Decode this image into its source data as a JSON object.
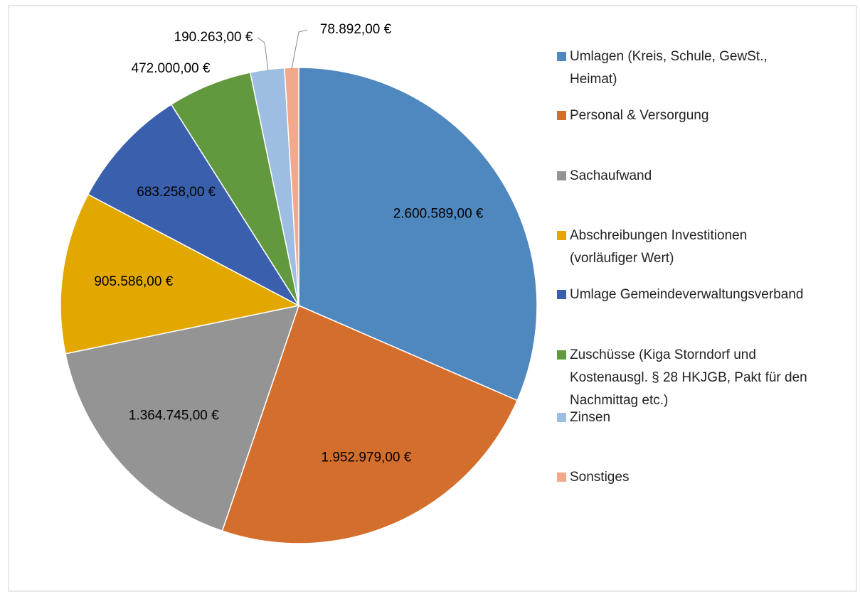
{
  "chart_data": {
    "type": "pie",
    "categories": [
      "Umlagen (Kreis, Schule, GewSt., Heimat)",
      "Personal & Versorgung",
      "Sachaufwand",
      "Abschreibungen Investitionen (vorläufiger Wert)",
      "Umlage Gemeindeverwaltungsverband",
      "Zuschüsse (Kiga Storndorf und Kostenausgl. § 28 HKJGB, Pakt für den Nachmittag etc.)",
      "Zinsen",
      "Sonstiges"
    ],
    "values": [
      2600589,
      1952979,
      1364745,
      905586,
      683258,
      472000,
      190263,
      78892
    ],
    "value_labels": [
      "2.600.589,00 €",
      "1.952.979,00 €",
      "1.364.745,00 €",
      "905.586,00 €",
      "683.258,00 €",
      "472.000,00 €",
      "190.263,00 €",
      "78.892,00 €"
    ],
    "colors": [
      "#4f88bf",
      "#d46e2c",
      "#949494",
      "#e3a800",
      "#3a60ad",
      "#62993e",
      "#9dbde3",
      "#f2a88a"
    ],
    "legend": "right"
  }
}
